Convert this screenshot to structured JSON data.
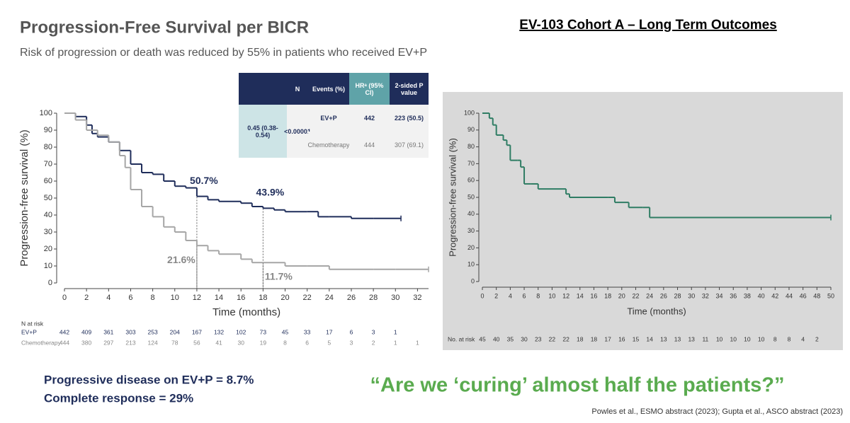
{
  "slide": {
    "header": "EV-103 Cohort A – Long Term Outcomes",
    "notes": [
      "Progressive disease on EV+P = 8.7%",
      "Complete response = 29%"
    ],
    "quote": "“Are we ‘curing’ almost half the patients?”",
    "citation": "Powles et al., ESMO abstract (2023); Gupta et al., ASCO abstract (2023)"
  },
  "chart_data": [
    {
      "type": "line",
      "step": true,
      "title": "Progression-Free Survival per BICR",
      "subtitle": "Risk of progression or death was reduced by 55% in patients who received EV+P",
      "x_label": "Time (months)",
      "y_label": "Progression-free survival (%)",
      "xlim": [
        0,
        33
      ],
      "xticks": [
        0,
        2,
        4,
        6,
        8,
        10,
        12,
        14,
        16,
        18,
        20,
        22,
        24,
        26,
        28,
        30,
        32
      ],
      "ylim": [
        0,
        100
      ],
      "yticks": [
        0,
        10,
        20,
        30,
        40,
        50,
        60,
        70,
        80,
        90,
        100
      ],
      "series": [
        {
          "name": "EV+P",
          "color": "#1f2d5a",
          "x": [
            0,
            1,
            2,
            2.5,
            3,
            4,
            5,
            6,
            7,
            8,
            9,
            10,
            11,
            12,
            13,
            14,
            16,
            17,
            18,
            19,
            20,
            22,
            23,
            24,
            26,
            28,
            30.5
          ],
          "values": [
            100,
            98,
            93,
            88,
            86,
            83,
            78,
            70,
            65,
            64,
            60,
            57,
            56,
            51,
            49,
            48,
            47,
            45,
            44,
            43,
            42,
            42,
            39,
            39,
            38,
            38,
            38
          ]
        },
        {
          "name": "Chemotherapy",
          "color": "#a6a6a6",
          "x": [
            0,
            1,
            2,
            3,
            4,
            5,
            5.5,
            6,
            7,
            8,
            9,
            10,
            11,
            12,
            13,
            14,
            16,
            17,
            18,
            20,
            22,
            24,
            26,
            28,
            30,
            33
          ],
          "values": [
            100,
            96,
            90,
            87,
            83,
            75,
            68,
            55,
            45,
            39,
            33,
            30,
            25,
            22,
            19,
            17,
            14,
            12,
            12,
            10,
            10,
            8,
            8,
            8,
            8,
            8
          ]
        }
      ],
      "annotations": [
        {
          "series": 0,
          "x": 12,
          "value": 50.7,
          "label": "50.7%"
        },
        {
          "series": 0,
          "x": 18,
          "value": 43.9,
          "label": "43.9%"
        },
        {
          "series": 1,
          "x": 12,
          "value": 21.6,
          "label": "21.6%"
        },
        {
          "series": 1,
          "x": 18,
          "value": 11.7,
          "label": "11.7%"
        }
      ],
      "table": {
        "header": [
          "N",
          "Events (%)",
          "HRᵃ (95% CI)",
          "2-sided P value"
        ],
        "rows": [
          [
            "442",
            "223 (50.5)"
          ],
          [
            "444",
            "307 (69.1)"
          ]
        ],
        "hr": "0.45 (0.38-0.54)",
        "p": "<0.00001"
      },
      "at_risk": {
        "title": "N at risk",
        "rows": [
          [
            442,
            409,
            361,
            303,
            253,
            204,
            167,
            132,
            102,
            73,
            45,
            33,
            17,
            6,
            3,
            1
          ],
          [
            444,
            380,
            297,
            213,
            124,
            78,
            56,
            41,
            30,
            19,
            8,
            6,
            5,
            3,
            2,
            1,
            1
          ]
        ]
      }
    },
    {
      "type": "line",
      "step": true,
      "x_label": "Time (months)",
      "y_label": "Progression-free survival (%)",
      "xlim": [
        0,
        50
      ],
      "xticks": [
        0,
        2,
        4,
        6,
        8,
        10,
        12,
        14,
        16,
        18,
        20,
        22,
        24,
        26,
        28,
        30,
        32,
        34,
        36,
        38,
        40,
        42,
        44,
        46,
        48,
        50
      ],
      "ylim": [
        0,
        100
      ],
      "yticks": [
        0,
        10,
        20,
        30,
        40,
        50,
        60,
        70,
        80,
        90,
        100
      ],
      "color": "#2f7d64",
      "x": [
        0,
        1,
        1.5,
        2,
        3,
        3.5,
        4,
        5,
        5.5,
        6,
        7,
        8,
        12,
        12.5,
        18,
        19,
        21,
        23,
        24,
        50
      ],
      "values": [
        100,
        97,
        93,
        87,
        84,
        81,
        72,
        72,
        68,
        58,
        58,
        55,
        52,
        50,
        50,
        47,
        44,
        44,
        38,
        38
      ],
      "at_risk": {
        "title": "No. at risk",
        "values": [
          45,
          40,
          35,
          30,
          23,
          22,
          22,
          18,
          18,
          17,
          16,
          15,
          14,
          13,
          13,
          13,
          11,
          10,
          10,
          10,
          10,
          8,
          8,
          4,
          2
        ]
      }
    }
  ]
}
